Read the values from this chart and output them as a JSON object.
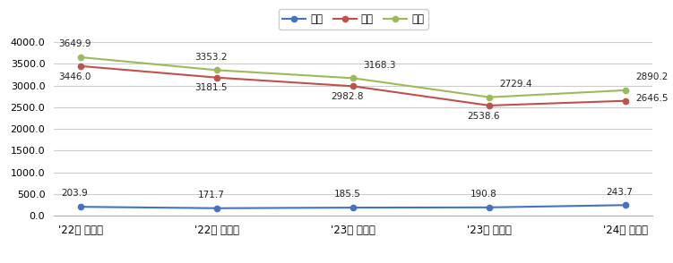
{
  "categories": [
    "'22년 상반기",
    "'22년 하반기",
    "'23년 상반기",
    "'23년 하반기",
    "'24년 상반기"
  ],
  "series": [
    {
      "name": "주식",
      "values": [
        203.9,
        171.7,
        185.5,
        190.8,
        243.7
      ],
      "color": "#4472C4",
      "marker": "o"
    },
    {
      "name": "체권",
      "values": [
        3446.0,
        3181.5,
        2982.8,
        2538.6,
        2646.5
      ],
      "color": "#C0504D",
      "marker": "o"
    },
    {
      "name": "합계",
      "values": [
        3649.9,
        3353.2,
        3168.3,
        2729.4,
        2890.2
      ],
      "color": "#9BBB59",
      "marker": "o"
    }
  ],
  "ylim": [
    0,
    4000
  ],
  "yticks": [
    0.0,
    500.0,
    1000.0,
    1500.0,
    2000.0,
    2500.0,
    3000.0,
    3500.0,
    4000.0
  ],
  "background_color": "#FFFFFF",
  "grid_color": "#CCCCCC"
}
